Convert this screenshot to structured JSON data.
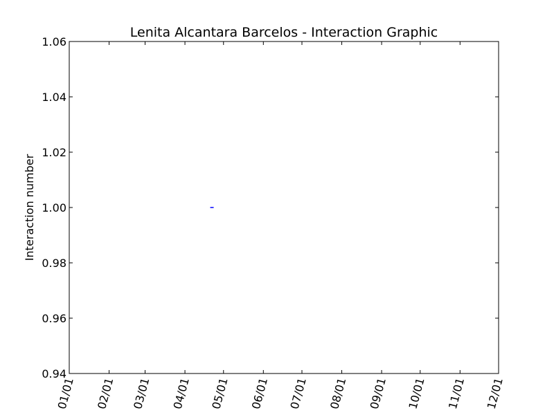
{
  "chart_data": {
    "type": "line",
    "title": "Lenita Alcantara Barcelos - Interaction Graphic",
    "xlabel": "",
    "ylabel": "Interaction number",
    "x_ticks": [
      "01/01",
      "02/01",
      "03/01",
      "04/01",
      "05/01",
      "06/01",
      "07/01",
      "08/01",
      "09/01",
      "10/01",
      "11/01",
      "12/01"
    ],
    "y_ticks": [
      "0.94",
      "0.96",
      "0.98",
      "1.00",
      "1.02",
      "1.04",
      "1.06"
    ],
    "ylim": [
      0.94,
      1.06
    ],
    "grid": false,
    "series": [
      {
        "color": "#0000ff",
        "x": [
          "04/22"
        ],
        "y": [
          1.0
        ]
      }
    ]
  }
}
